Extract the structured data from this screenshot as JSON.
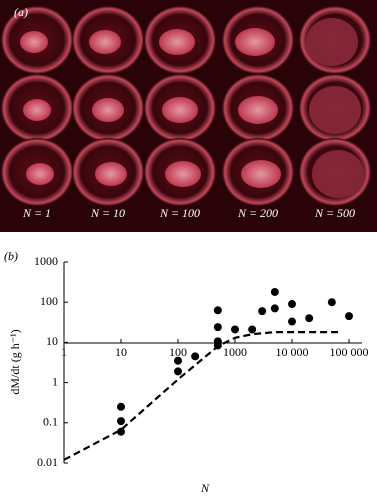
{
  "figure": {
    "panel_a": {
      "label": "(a)",
      "captions": [
        "N = 1",
        "N = 10",
        "N = 100",
        "N = 200",
        "N = 500"
      ]
    }
  },
  "chart_data": {
    "type": "scatter",
    "panel_label": "(b)",
    "x_label": "N",
    "y_label": "dM/dt (g h⁻¹)",
    "log_x": true,
    "log_y": true,
    "xlim": [
      1,
      100000
    ],
    "ylim": [
      0.01,
      1000
    ],
    "xticks": [
      1,
      10,
      100,
      1000,
      {
        "value": 10000,
        "label": "10 000"
      },
      {
        "value": 100000,
        "label": "100 000"
      }
    ],
    "yticks": [
      0.01,
      0.1,
      1,
      10,
      100,
      1000
    ],
    "series": [
      {
        "type": "scatter",
        "color": "#000000",
        "x": [
          10,
          10,
          10,
          100,
          100,
          200,
          500,
          500,
          500,
          500,
          1000,
          2000,
          3000,
          5000,
          5000,
          10000,
          10000,
          20000,
          50000,
          100000
        ],
        "values": [
          0.25,
          0.11,
          0.06,
          3.5,
          1.9,
          4.5,
          63,
          24,
          10.6,
          8.4,
          21,
          21,
          60,
          180,
          70,
          90,
          33,
          40,
          100,
          45
        ]
      },
      {
        "type": "line",
        "color": "#000000",
        "dashed": true,
        "x": [
          1,
          10,
          100,
          500,
          1000,
          2000,
          5000,
          70000
        ],
        "values": [
          0.012,
          0.067,
          1.2,
          8,
          13,
          16,
          18,
          18
        ]
      }
    ]
  }
}
